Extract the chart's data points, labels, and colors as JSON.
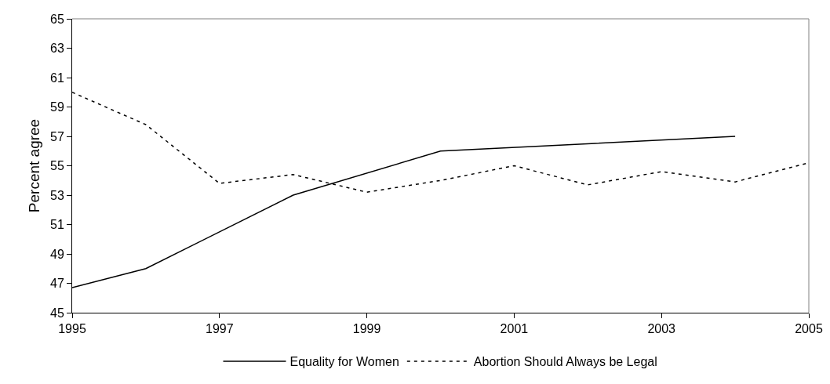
{
  "chart_data": {
    "type": "line",
    "ylabel": "Percent agree",
    "xlim": [
      1995,
      2005
    ],
    "xticks": [
      1995,
      1997,
      1999,
      2001,
      2003,
      2005
    ],
    "ylim": [
      45,
      65
    ],
    "yticks": [
      45,
      47,
      49,
      51,
      53,
      55,
      57,
      59,
      61,
      63,
      65
    ],
    "grid": false,
    "legend": "bottom",
    "marker": "none",
    "series": [
      {
        "name": "Equality for Women",
        "color": "#000000",
        "line_style": "solid",
        "x": [
          1995,
          1996,
          1998,
          2000,
          2004
        ],
        "values": [
          46.7,
          48.0,
          53.0,
          56.0,
          57.0
        ]
      },
      {
        "name": "Abortion Should Always be Legal",
        "color": "#000000",
        "line_style": "dashed",
        "x": [
          1995,
          1996,
          1997,
          1998,
          1999,
          2000,
          2001,
          2002,
          2003,
          2004,
          2005
        ],
        "values": [
          60.0,
          57.8,
          53.8,
          54.4,
          53.2,
          54.0,
          55.0,
          53.7,
          54.6,
          53.9,
          55.2
        ]
      }
    ]
  }
}
